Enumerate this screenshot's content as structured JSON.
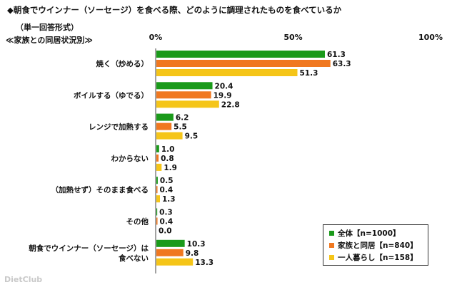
{
  "header": {
    "title": "◆朝食でウインナー（ソーセージ）を食べる際、どのように調理されたものを食べているか",
    "subtitle1": "（単一回答形式）",
    "subtitle2": "≪家族との同居状況別≫"
  },
  "watermark": "DietClub",
  "chart_data": {
    "type": "bar",
    "orientation": "horizontal",
    "categories": [
      "焼く（炒める）",
      "ボイルする（ゆでる）",
      "レンジで加熱する",
      "わからない",
      "（加熱せず）そのまま食べる",
      "その他",
      "朝食でウインナー（ソーセージ）は食べない"
    ],
    "category_lines": [
      [
        "焼く（炒める）"
      ],
      [
        "ボイルする（ゆでる）"
      ],
      [
        "レンジで加熱する"
      ],
      [
        "わからない"
      ],
      [
        "（加熱せず）そのまま食べる"
      ],
      [
        "その他"
      ],
      [
        "朝食でウインナー（ソーセージ）は",
        "食べない"
      ]
    ],
    "series": [
      {
        "name": "全体【n=1000】",
        "color": "#1a9a1a",
        "values": [
          61.3,
          20.4,
          6.2,
          1.0,
          0.5,
          0.3,
          10.3
        ]
      },
      {
        "name": "家族と同居【n=840】",
        "color": "#f07820",
        "values": [
          63.3,
          19.9,
          5.5,
          0.8,
          0.4,
          0.4,
          9.8
        ]
      },
      {
        "name": "一人暮らし【n=158】",
        "color": "#f5c518",
        "values": [
          51.3,
          22.8,
          9.5,
          1.9,
          1.3,
          0.0,
          13.3
        ]
      }
    ],
    "xlim": [
      0,
      100
    ],
    "xticks": [
      "0%",
      "50%",
      "100%"
    ],
    "legend_position": "bottom-right"
  }
}
